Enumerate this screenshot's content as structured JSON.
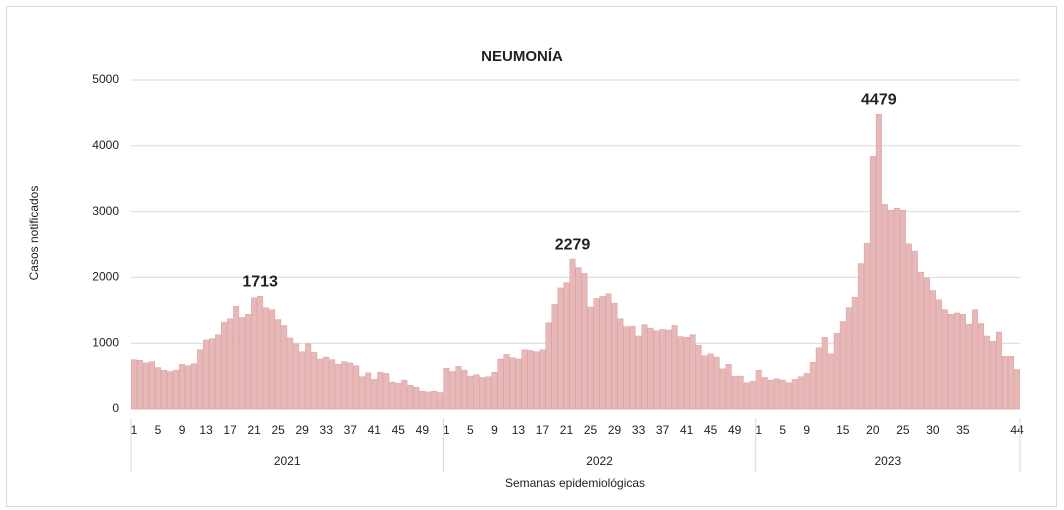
{
  "chart_data": {
    "type": "bar",
    "title": "NEUMONÍA",
    "y_label": "Casos notificados",
    "x_label": "Semanas epidemiológicas",
    "categories": [
      "1",
      null,
      null,
      null,
      "5",
      null,
      null,
      null,
      "9",
      null,
      null,
      null,
      "13",
      null,
      null,
      null,
      "17",
      null,
      null,
      null,
      "21",
      null,
      null,
      null,
      "25",
      null,
      null,
      null,
      "29",
      null,
      null,
      null,
      "33",
      null,
      null,
      null,
      "37",
      null,
      null,
      null,
      "41",
      null,
      null,
      null,
      "45",
      null,
      null,
      null,
      "49",
      null,
      null,
      null,
      "1",
      null,
      null,
      null,
      "5",
      null,
      null,
      null,
      "9",
      null,
      null,
      null,
      "13",
      null,
      null,
      null,
      "17",
      null,
      null,
      null,
      "21",
      null,
      null,
      null,
      "25",
      null,
      null,
      null,
      "29",
      null,
      null,
      null,
      "33",
      null,
      null,
      null,
      "37",
      null,
      null,
      null,
      "41",
      null,
      null,
      null,
      "45",
      null,
      null,
      null,
      "49",
      null,
      null,
      null,
      "1",
      null,
      null,
      null,
      "5",
      null,
      null,
      null,
      "9",
      null,
      null,
      null,
      null,
      null,
      "15",
      null,
      null,
      null,
      null,
      "20",
      null,
      null,
      null,
      null,
      "25",
      null,
      null,
      null,
      null,
      "30",
      null,
      null,
      null,
      null,
      "35",
      null,
      null,
      null,
      null,
      null,
      null,
      null,
      null,
      "44"
    ],
    "values": [
      750,
      740,
      700,
      720,
      630,
      590,
      570,
      590,
      680,
      660,
      690,
      900,
      1050,
      1070,
      1130,
      1320,
      1370,
      1560,
      1390,
      1440,
      1690,
      1713,
      1540,
      1510,
      1360,
      1270,
      1080,
      990,
      870,
      990,
      860,
      760,
      790,
      750,
      680,
      720,
      700,
      660,
      490,
      550,
      450,
      560,
      540,
      410,
      390,
      440,
      360,
      330,
      270,
      260,
      270,
      250,
      620,
      570,
      650,
      590,
      500,
      520,
      480,
      490,
      560,
      760,
      830,
      780,
      760,
      900,
      890,
      870,
      900,
      1310,
      1590,
      1840,
      1920,
      2279,
      2150,
      2060,
      1550,
      1680,
      1710,
      1750,
      1610,
      1370,
      1250,
      1260,
      1110,
      1280,
      1230,
      1190,
      1210,
      1200,
      1270,
      1100,
      1090,
      1130,
      970,
      810,
      840,
      790,
      610,
      680,
      500,
      500,
      400,
      420,
      590,
      480,
      440,
      460,
      440,
      400,
      450,
      490,
      540,
      710,
      930,
      1090,
      840,
      1150,
      1330,
      1540,
      1700,
      2210,
      2520,
      3840,
      4479,
      3110,
      3020,
      3050,
      3020,
      2510,
      2400,
      2080,
      1990,
      1800,
      1660,
      1510,
      1440,
      1460,
      1440,
      1290,
      1510,
      1300,
      1110,
      1030,
      1170,
      800,
      800,
      600
    ],
    "groups": [
      {
        "label": "2021",
        "count": 52
      },
      {
        "label": "2022",
        "count": 52
      },
      {
        "label": "2023",
        "count": 44
      }
    ],
    "labeled_points": [
      21,
      73,
      124
    ],
    "color": "#e6b8b7",
    "ylim": [
      0,
      5000
    ],
    "yticks": [
      0,
      1000,
      2000,
      3000,
      4000,
      5000
    ],
    "grid": true
  }
}
